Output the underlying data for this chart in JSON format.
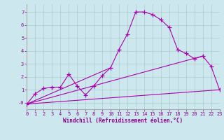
{
  "background_color": "#cce8ee",
  "grid_color": "#aacccc",
  "line_color": "#aa00aa",
  "xlim": [
    0,
    23
  ],
  "ylim": [
    -0.5,
    7.6
  ],
  "ytick_vals": [
    0,
    1,
    2,
    3,
    4,
    5,
    6,
    7
  ],
  "ytick_labels": [
    "-0",
    "1",
    "2",
    "3",
    "4",
    "5",
    "6",
    "7"
  ],
  "xtick_vals": [
    0,
    1,
    2,
    3,
    4,
    5,
    6,
    7,
    8,
    9,
    10,
    11,
    12,
    13,
    14,
    15,
    16,
    17,
    18,
    19,
    20,
    21,
    22,
    23
  ],
  "xlabel": "Windchill (Refroidissement éolien,°C)",
  "curve1_x": [
    0,
    1,
    2,
    3,
    4,
    5,
    6,
    7,
    8,
    9,
    10,
    11,
    12,
    13,
    14,
    15,
    16,
    17,
    18,
    19,
    20,
    21,
    22,
    23
  ],
  "curve1_y": [
    -0.1,
    0.7,
    1.1,
    1.2,
    1.2,
    2.2,
    1.3,
    0.6,
    1.3,
    2.1,
    2.7,
    4.1,
    5.3,
    7.0,
    7.0,
    6.8,
    6.4,
    5.8,
    4.1,
    3.8,
    3.4,
    3.6,
    2.8,
    1.0
  ],
  "line1_x": [
    0,
    23
  ],
  "line1_y": [
    -0.1,
    1.0
  ],
  "line2_x": [
    0,
    21
  ],
  "line2_y": [
    -0.1,
    3.6
  ],
  "line3_x": [
    0,
    10
  ],
  "line3_y": [
    -0.1,
    2.7
  ],
  "marker": "+",
  "markersize": 4,
  "linewidth": 0.8,
  "tick_fontsize": 5.0,
  "xlabel_fontsize": 5.5
}
